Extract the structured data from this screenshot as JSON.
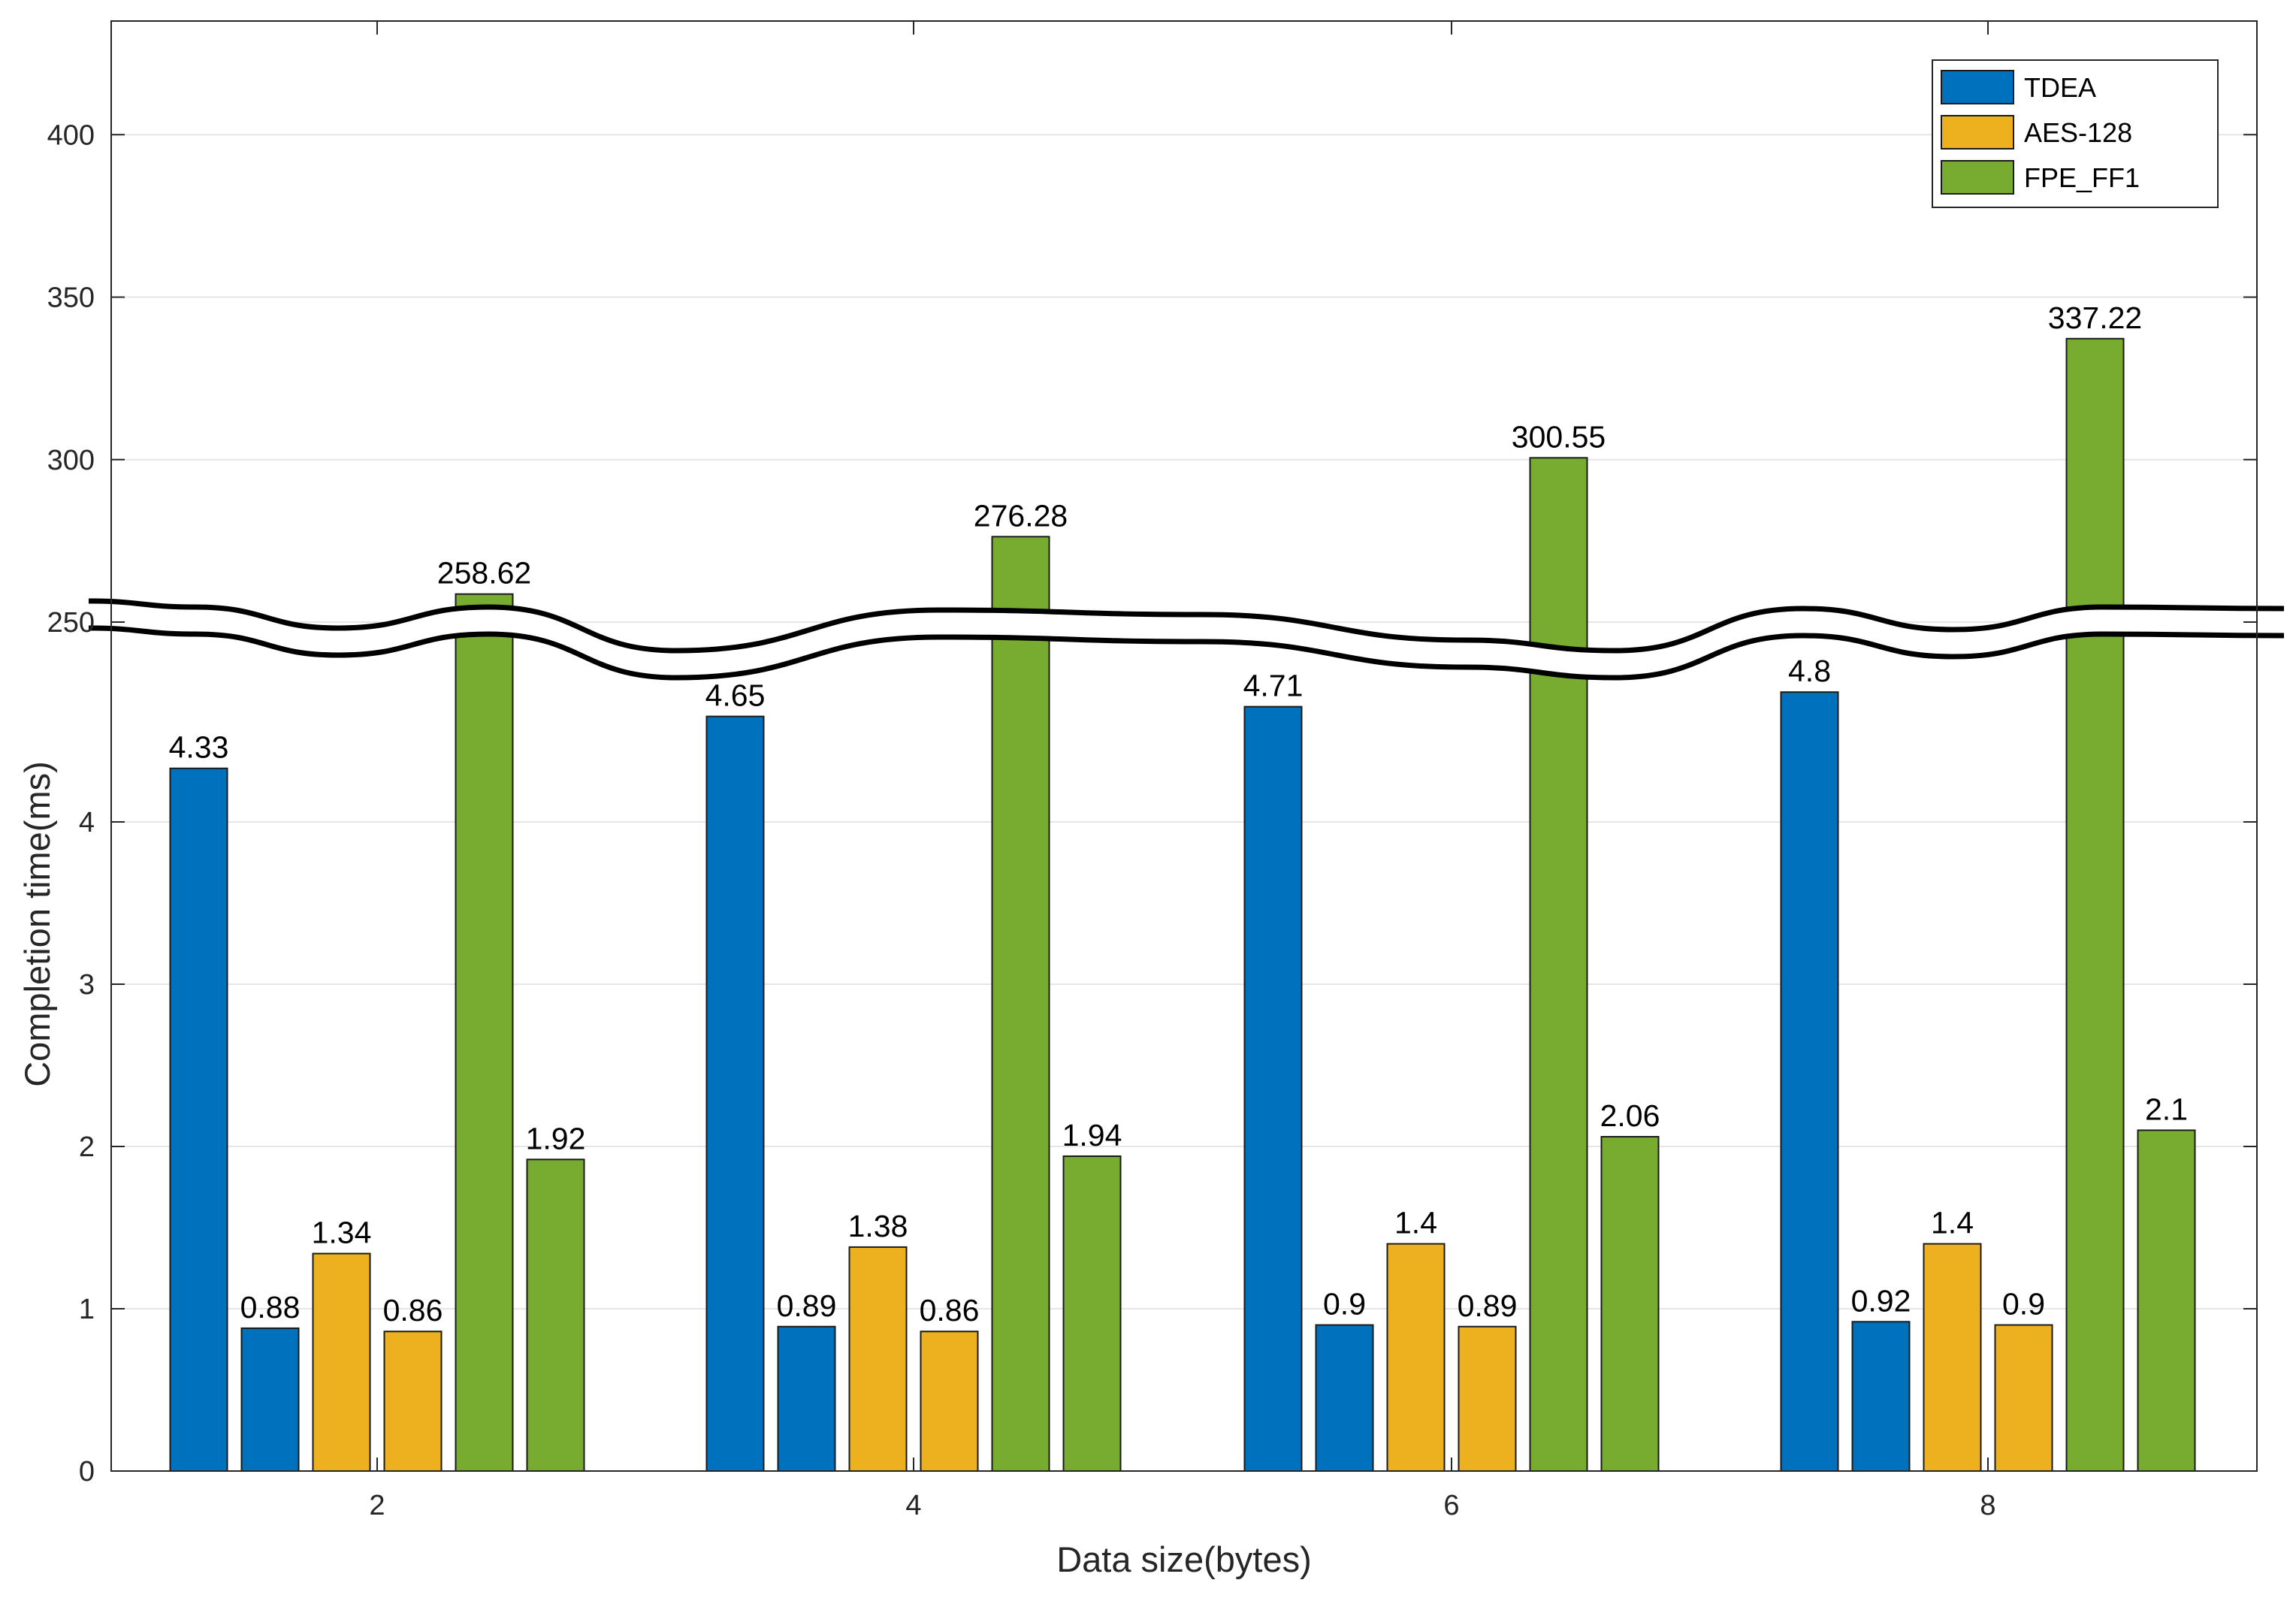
{
  "chart_data": {
    "type": "bar",
    "title": "",
    "xlabel": "Data size(bytes)",
    "ylabel": "Completion time(ms)",
    "categories": [
      "2",
      "4",
      "6",
      "8"
    ],
    "broken_axis": {
      "lower_range": [
        0,
        5
      ],
      "upper_range": [
        250,
        430
      ],
      "lower_ticks": [
        "0",
        "1",
        "2",
        "3",
        "4"
      ],
      "upper_ticks": [
        "250",
        "300",
        "350",
        "400"
      ]
    },
    "grid": true,
    "legend_position": "top-right",
    "series": [
      {
        "name": "TDEA",
        "color": "#0072BD",
        "values": [
          4.33,
          4.65,
          4.71,
          4.8
        ],
        "paired_values": [
          0.88,
          0.89,
          0.9,
          0.92
        ]
      },
      {
        "name": "AES-128",
        "color": "#EDB120",
        "values": [
          1.34,
          1.38,
          1.4,
          1.4
        ],
        "paired_values": [
          0.86,
          0.86,
          0.89,
          0.9
        ]
      },
      {
        "name": "FPE_FF1",
        "color": "#77AC30",
        "values": [
          258.62,
          276.28,
          300.55,
          337.22
        ],
        "paired_values": [
          1.92,
          1.94,
          2.06,
          2.1
        ]
      }
    ],
    "value_labels": [
      [
        "4.33",
        "0.88",
        "1.34",
        "0.86",
        "258.62",
        "1.92"
      ],
      [
        "4.65",
        "0.89",
        "1.38",
        "0.86",
        "276.28",
        "1.94"
      ],
      [
        "4.71",
        "0.9",
        "1.4",
        "0.89",
        "300.55",
        "2.06"
      ],
      [
        "4.8",
        "0.92",
        "1.4",
        "0.9",
        "337.22",
        "2.1"
      ]
    ]
  }
}
